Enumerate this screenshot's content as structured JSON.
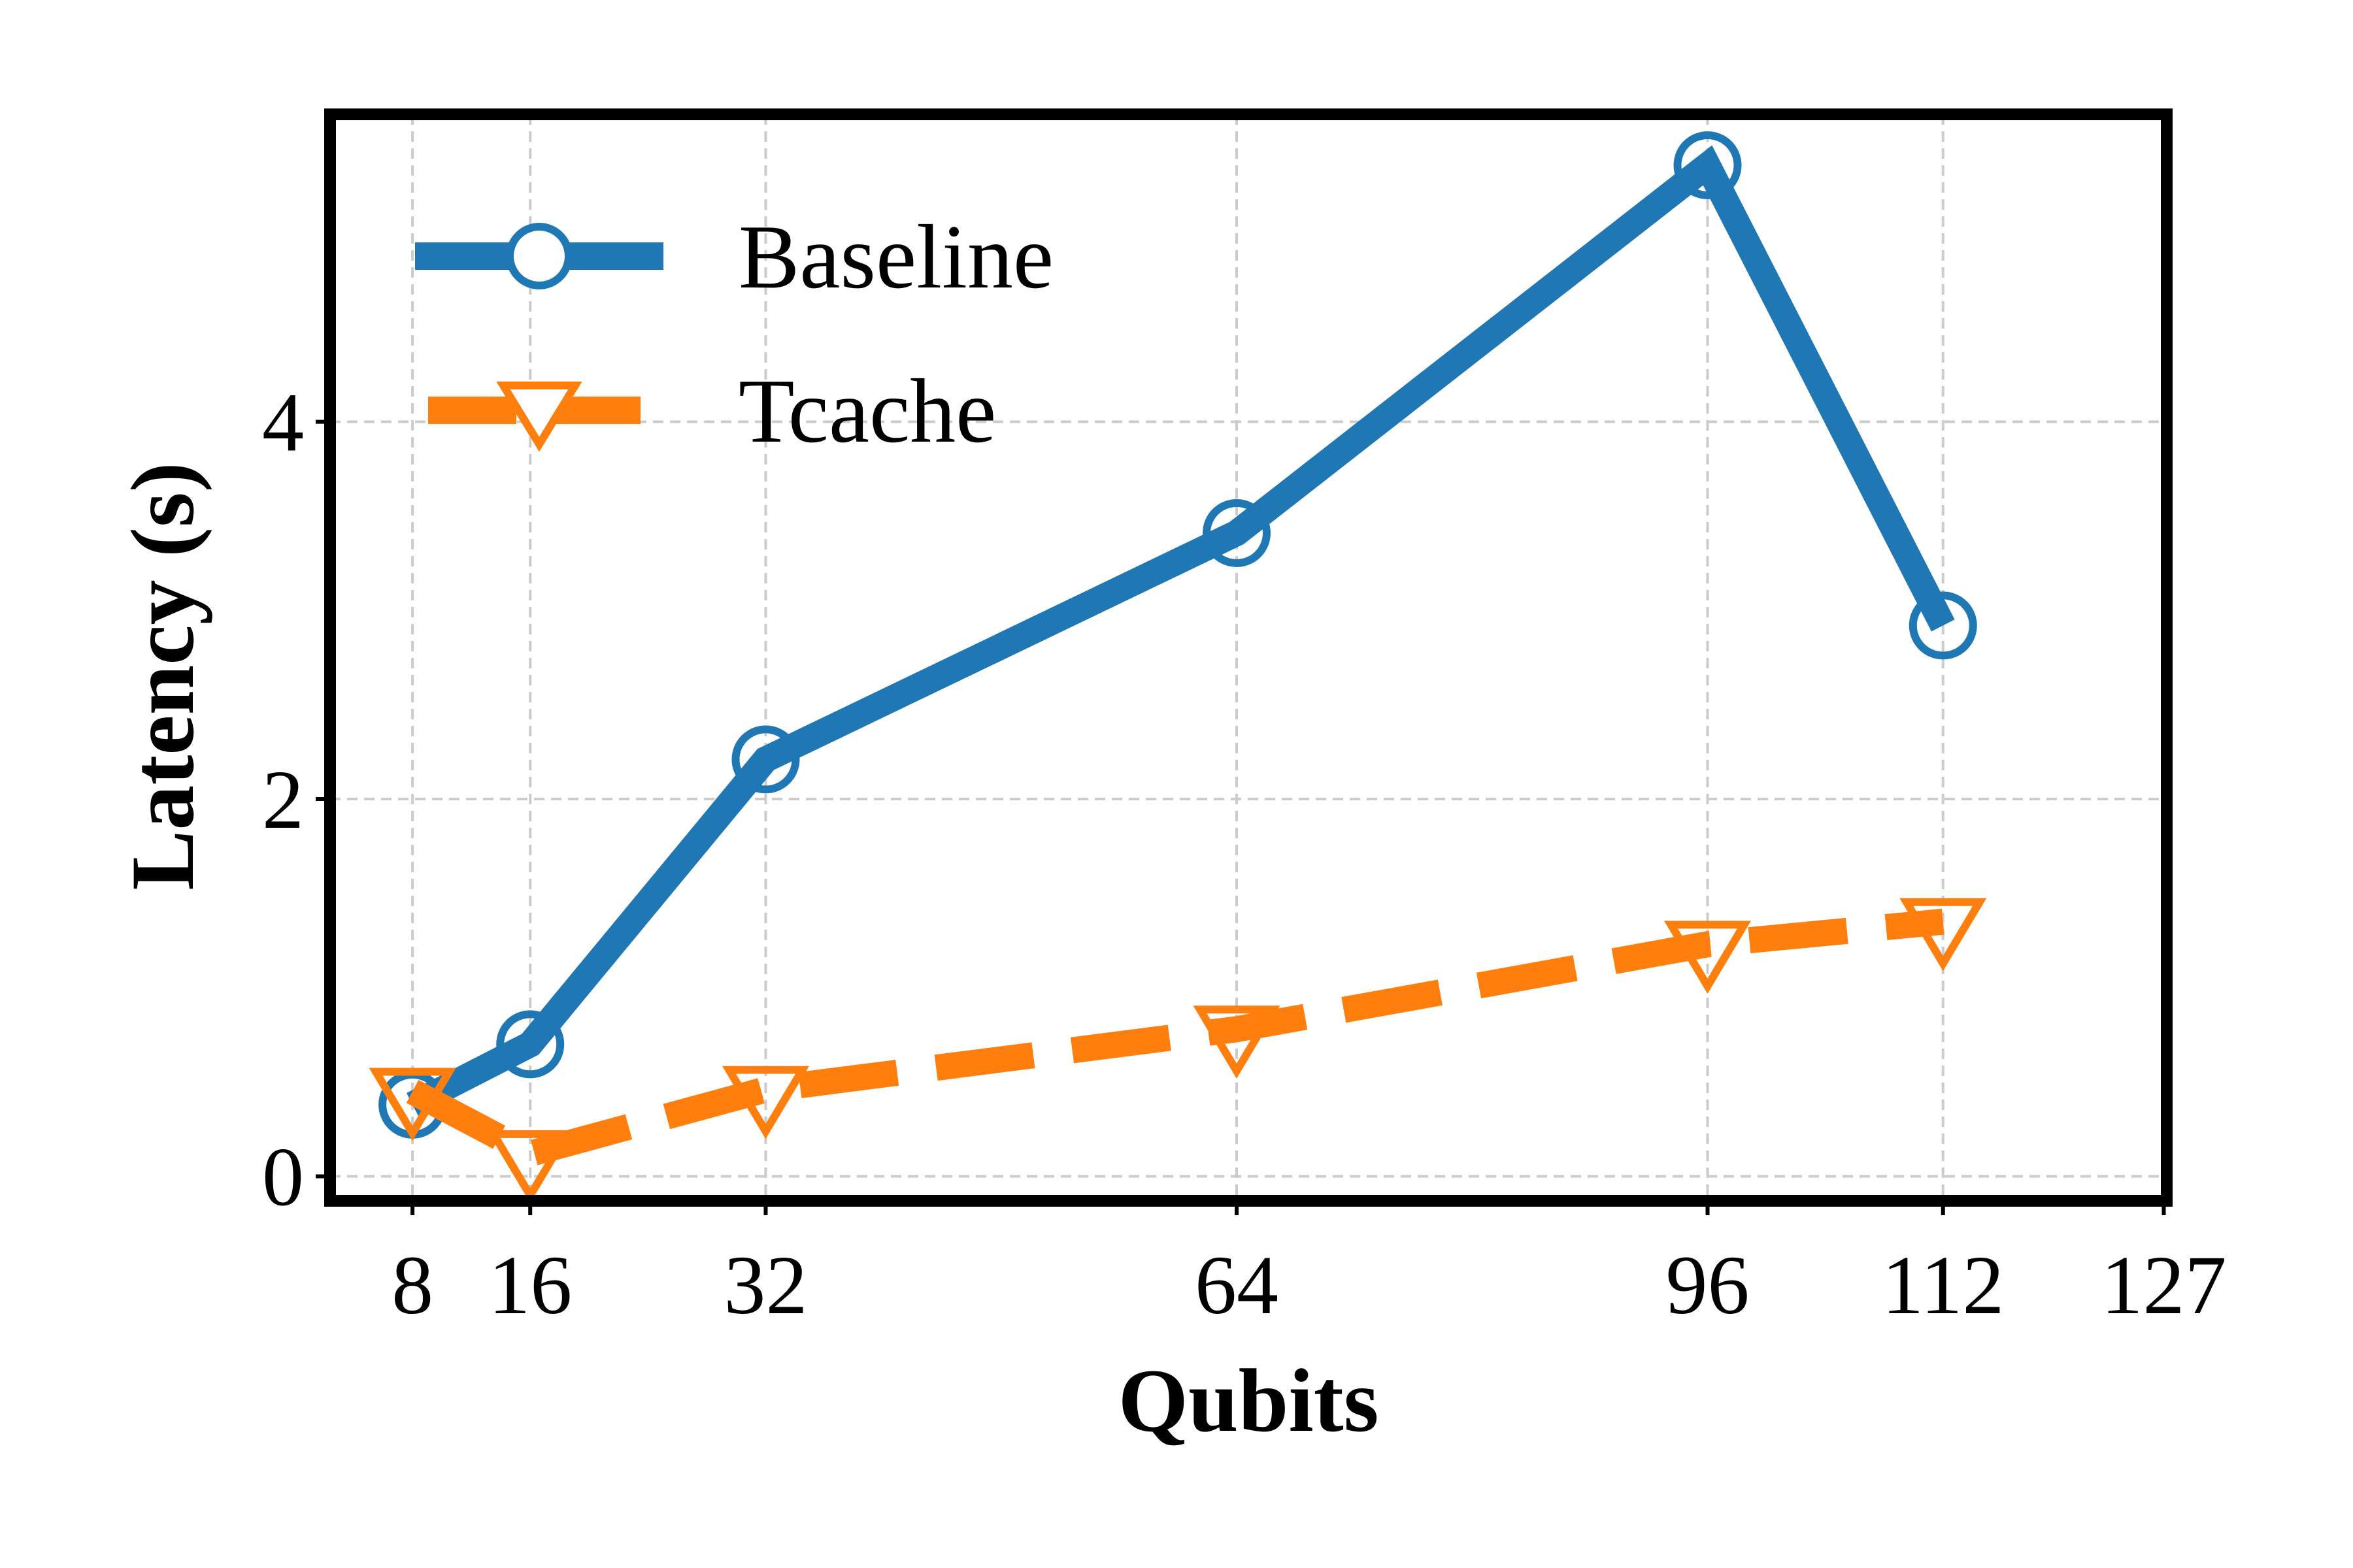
{
  "chart_data": {
    "type": "line",
    "title": "",
    "xlabel": "Qubits",
    "ylabel": "Latency (s)",
    "x": [
      8,
      16,
      32,
      64,
      96,
      112
    ],
    "xticks": [
      8,
      16,
      32,
      64,
      96,
      112,
      127
    ],
    "yticks": [
      0,
      2,
      4
    ],
    "xlim": [
      2.4,
      127.2
    ],
    "ylim": [
      -0.13,
      5.63
    ],
    "grid": true,
    "legend_position": "top-left",
    "series": [
      {
        "name": "Baseline",
        "values": [
          0.38,
          0.7,
          2.21,
          3.41,
          5.36,
          2.92
        ],
        "color": "#1f77b4",
        "line_style": "solid",
        "marker": "circle-open"
      },
      {
        "name": "Tcache",
        "values": [
          0.45,
          0.12,
          0.46,
          0.78,
          1.23,
          1.35
        ],
        "color": "#ff7f0e",
        "line_style": "dashed",
        "marker": "triangle-down-open"
      }
    ]
  }
}
